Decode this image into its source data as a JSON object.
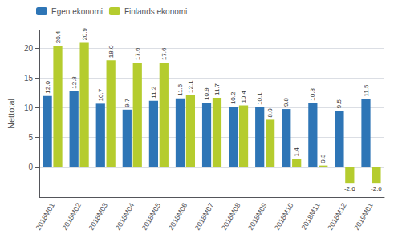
{
  "chart_data": {
    "type": "bar",
    "ylabel": "Nettotal",
    "categories": [
      "2018M01",
      "2018M02",
      "2018M03",
      "2018M04",
      "2018M05",
      "2018M06",
      "2018M07",
      "2018M08",
      "2018M09",
      "2018M10",
      "2018M11",
      "2018M12",
      "2019M01"
    ],
    "series": [
      {
        "name": "Egen ekonomi",
        "color": "#2E75B6",
        "values": [
          12.0,
          12.8,
          10.7,
          9.7,
          11.2,
          11.6,
          10.9,
          10.2,
          10.1,
          9.8,
          10.8,
          9.5,
          11.5
        ],
        "value_labels": [
          "12.0",
          "12.8",
          "10.7",
          "9.7",
          "11.2",
          "11.6",
          "10.9",
          "10.2",
          "10.1",
          "9.8",
          "10.8",
          "9.5",
          "11.5"
        ]
      },
      {
        "name": "Finlands ekonomi",
        "color": "#B5CC2E",
        "values": [
          20.4,
          20.9,
          18.0,
          17.6,
          17.6,
          12.1,
          11.7,
          10.4,
          8.0,
          1.4,
          0.3,
          -2.6,
          -2.6
        ],
        "value_labels": [
          "20.4",
          "20.9",
          "18.0",
          "17.6",
          "17.6",
          "12.1",
          "11.7",
          "10.4",
          "8.0",
          "1.4",
          "0.3",
          "-2.6",
          "-2.6"
        ]
      }
    ],
    "ylim": [
      -5,
      23
    ],
    "yticks": [
      0,
      5,
      10,
      15,
      20
    ],
    "grid": true,
    "legend": "upper left",
    "data_labels": true
  }
}
